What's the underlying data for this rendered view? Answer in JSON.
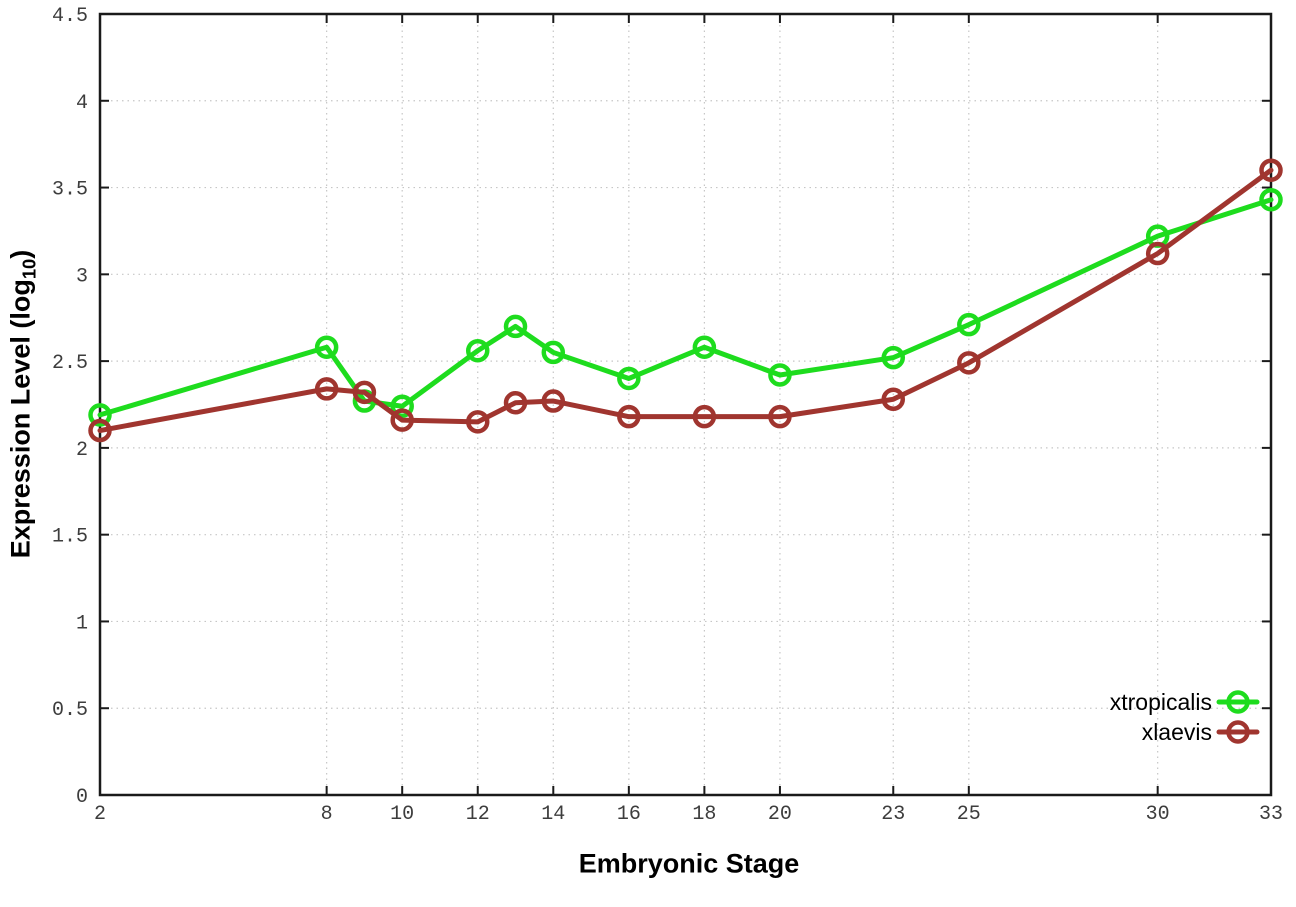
{
  "chart_data": {
    "type": "line",
    "title": "",
    "xlabel": "Embryonic Stage",
    "ylabel": "Expression Level (log10)",
    "ylabel_parts": {
      "main": "Expression Level (log",
      "sub": "10",
      "close": ")"
    },
    "xlim": [
      2,
      33
    ],
    "ylim": [
      0,
      4.5
    ],
    "x_ticks": [
      2,
      8,
      10,
      12,
      14,
      16,
      18,
      20,
      23,
      25,
      30,
      33
    ],
    "y_ticks": [
      0,
      0.5,
      1,
      1.5,
      2,
      2.5,
      3,
      3.5,
      4,
      4.5
    ],
    "grid": true,
    "legend_position": "bottom-right",
    "x": [
      2,
      8,
      9,
      10,
      12,
      13,
      14,
      16,
      18,
      20,
      23,
      25,
      30,
      33
    ],
    "series": [
      {
        "name": "xtropicalis",
        "color": "#1edc1e",
        "marker": "open-circle",
        "values": [
          2.19,
          2.58,
          2.27,
          2.24,
          2.56,
          2.7,
          2.55,
          2.4,
          2.58,
          2.42,
          2.52,
          2.71,
          3.22,
          3.43
        ]
      },
      {
        "name": "xlaevis",
        "color": "#a0352f",
        "marker": "open-circle",
        "values": [
          2.1,
          2.34,
          2.32,
          2.16,
          2.15,
          2.26,
          2.27,
          2.18,
          2.18,
          2.18,
          2.28,
          2.49,
          3.12,
          3.6
        ]
      }
    ],
    "style_colors": {
      "border": "#1a1a1a",
      "grid": "#c6c6c6",
      "tick_text": "#3d3d3d"
    }
  }
}
